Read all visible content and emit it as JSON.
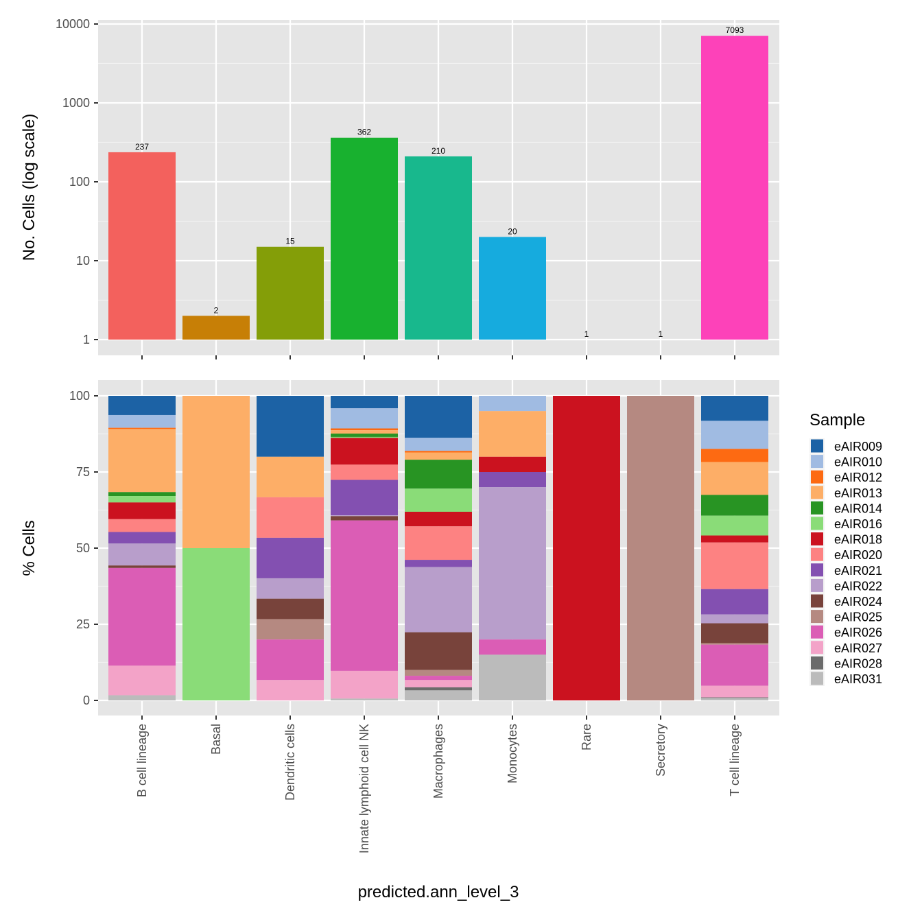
{
  "chart_data": [
    {
      "type": "bar",
      "panel": "top",
      "title": "",
      "xlabel": "",
      "ylabel": "No. Cells (log scale)",
      "yscale": "log10",
      "ylim": [
        1,
        10000
      ],
      "yticks": [
        1,
        10,
        100,
        1000,
        10000
      ],
      "ytick_labels": [
        "1",
        "10",
        "100",
        "1000",
        "10000"
      ],
      "grid": true,
      "categories": [
        "B cell lineage",
        "Basal",
        "Dendritic cells",
        "Innate lymphoid cell NK",
        "Macrophages",
        "Monocytes",
        "Rare",
        "Secretory",
        "T cell lineage"
      ],
      "values": [
        237,
        2,
        15,
        362,
        210,
        20,
        1,
        1,
        7093
      ],
      "data_labels": [
        "237",
        "2",
        "15",
        "362",
        "210",
        "20",
        "1",
        "1",
        "7093"
      ],
      "colors": [
        "#F3615D",
        "#C77F06",
        "#849E08",
        "#18B12F",
        "#18B88D",
        "#16ABDE",
        "#7C95FF",
        "#C76AF9",
        "#FD42B9"
      ]
    },
    {
      "type": "bar",
      "stacked": true,
      "panel": "bottom",
      "xlabel": "predicted.ann_level_3",
      "ylabel": "% Cells",
      "ylim": [
        0,
        100
      ],
      "yticks": [
        0,
        25,
        50,
        75,
        100
      ],
      "ytick_labels": [
        "0",
        "25",
        "50",
        "75",
        "100"
      ],
      "grid": true,
      "legend": {
        "title": "Sample",
        "placement": "right"
      },
      "categories": [
        "B cell lineage",
        "Basal",
        "Dendritic cells",
        "Innate lymphoid cell NK",
        "Macrophages",
        "Monocytes",
        "Rare",
        "Secretory",
        "T cell lineage"
      ],
      "series": [
        {
          "name": "eAIR009",
          "color": "#1C62A5",
          "values": [
            6.3,
            0,
            20.0,
            4.1,
            13.8,
            0,
            0,
            0,
            8.2
          ]
        },
        {
          "name": "eAIR010",
          "color": "#A0BBE2",
          "values": [
            4.2,
            0,
            0,
            6.6,
            4.3,
            5.0,
            0,
            0,
            9.2
          ]
        },
        {
          "name": "eAIR012",
          "color": "#FD6A12",
          "values": [
            0.4,
            0,
            0,
            0.6,
            0.5,
            0,
            0,
            0,
            4.3
          ]
        },
        {
          "name": "eAIR013",
          "color": "#FDAE67",
          "values": [
            20.7,
            50.0,
            13.3,
            1.1,
            2.4,
            15.0,
            0,
            0,
            10.8
          ]
        },
        {
          "name": "eAIR014",
          "color": "#289423",
          "values": [
            1.3,
            0,
            0,
            1.1,
            9.5,
            0,
            0,
            0,
            6.8
          ]
        },
        {
          "name": "eAIR016",
          "color": "#8ADC78",
          "values": [
            2.1,
            50.0,
            0,
            0.3,
            7.6,
            0,
            0,
            0,
            6.5
          ]
        },
        {
          "name": "eAIR018",
          "color": "#CB121F",
          "values": [
            5.5,
            0,
            0,
            8.8,
            4.8,
            5.0,
            100.0,
            0,
            2.3
          ]
        },
        {
          "name": "eAIR020",
          "color": "#FD8282",
          "values": [
            4.2,
            0,
            13.3,
            5.0,
            11.0,
            0,
            0,
            0,
            15.3
          ]
        },
        {
          "name": "eAIR021",
          "color": "#8350B1",
          "values": [
            3.8,
            0,
            13.3,
            11.6,
            2.4,
            5.0,
            0,
            0,
            8.3
          ]
        },
        {
          "name": "eAIR022",
          "color": "#B89ECB",
          "values": [
            7.2,
            0,
            6.7,
            0.3,
            21.4,
            50.0,
            0,
            0,
            2.9
          ]
        },
        {
          "name": "eAIR024",
          "color": "#78433B",
          "values": [
            0.8,
            0,
            6.7,
            1.4,
            12.4,
            0,
            0,
            0,
            6.5
          ]
        },
        {
          "name": "eAIR025",
          "color": "#B58981",
          "values": [
            0,
            0,
            6.7,
            0,
            1.9,
            0,
            0,
            100.0,
            0.5
          ]
        },
        {
          "name": "eAIR026",
          "color": "#DB5DB5",
          "values": [
            32.1,
            0,
            13.3,
            49.4,
            1.4,
            5.0,
            0,
            0,
            13.5
          ]
        },
        {
          "name": "eAIR027",
          "color": "#F3A3C8",
          "values": [
            9.7,
            0,
            6.7,
            9.1,
            2.4,
            0,
            0,
            0,
            3.8
          ]
        },
        {
          "name": "eAIR028",
          "color": "#6B6B6B",
          "values": [
            0,
            0,
            0,
            0,
            1.0,
            0,
            0,
            0,
            0.2
          ]
        },
        {
          "name": "eAIR031",
          "color": "#BBBBBB",
          "values": [
            1.7,
            0,
            0,
            0.6,
            3.3,
            15.0,
            0,
            0,
            0.8
          ]
        }
      ]
    }
  ]
}
